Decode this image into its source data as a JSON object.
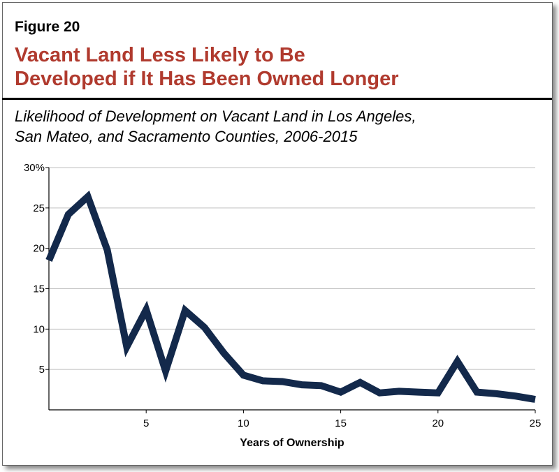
{
  "figure": {
    "label": "Figure 20",
    "title_line1": "Vacant Land Less Likely to Be",
    "title_line2": "Developed if It Has Been Owned Longer",
    "subtitle_line1": "Likelihood of Development on Vacant Land in Los Angeles,",
    "subtitle_line2": "San Mateo, and Sacramento Counties, 2006-2015"
  },
  "colors": {
    "title": "#b03a2e",
    "line": "#13294b",
    "grid": "#bfbfbf"
  },
  "chart_data": {
    "type": "line",
    "title": "Likelihood of Development on Vacant Land in Los Angeles, San Mateo, and Sacramento Counties, 2006-2015",
    "xlabel": "Years of Ownership",
    "ylabel": "",
    "xlim": [
      0,
      25
    ],
    "ylim": [
      0,
      30
    ],
    "grid": true,
    "x_ticks": [
      5,
      10,
      15,
      20,
      25
    ],
    "x_tick_labels": [
      "5",
      "10",
      "15",
      "20",
      "25"
    ],
    "y_ticks": [
      5,
      10,
      15,
      20,
      25,
      30
    ],
    "y_tick_labels": [
      "5",
      "10",
      "15",
      "20",
      "25",
      "30%"
    ],
    "series": [
      {
        "name": "Likelihood of development",
        "x": [
          0,
          1,
          2,
          3,
          4,
          5,
          6,
          7,
          8,
          9,
          10,
          11,
          12,
          13,
          14,
          15,
          16,
          17,
          18,
          19,
          20,
          21,
          22,
          23,
          24,
          25
        ],
        "values": [
          18.5,
          24.2,
          26.4,
          19.8,
          7.8,
          12.4,
          4.8,
          12.3,
          10.2,
          7.0,
          4.3,
          3.6,
          3.5,
          3.1,
          3.0,
          2.2,
          3.4,
          2.1,
          2.3,
          2.2,
          2.1,
          6.0,
          2.2,
          2.0,
          1.7,
          1.3
        ]
      }
    ]
  }
}
